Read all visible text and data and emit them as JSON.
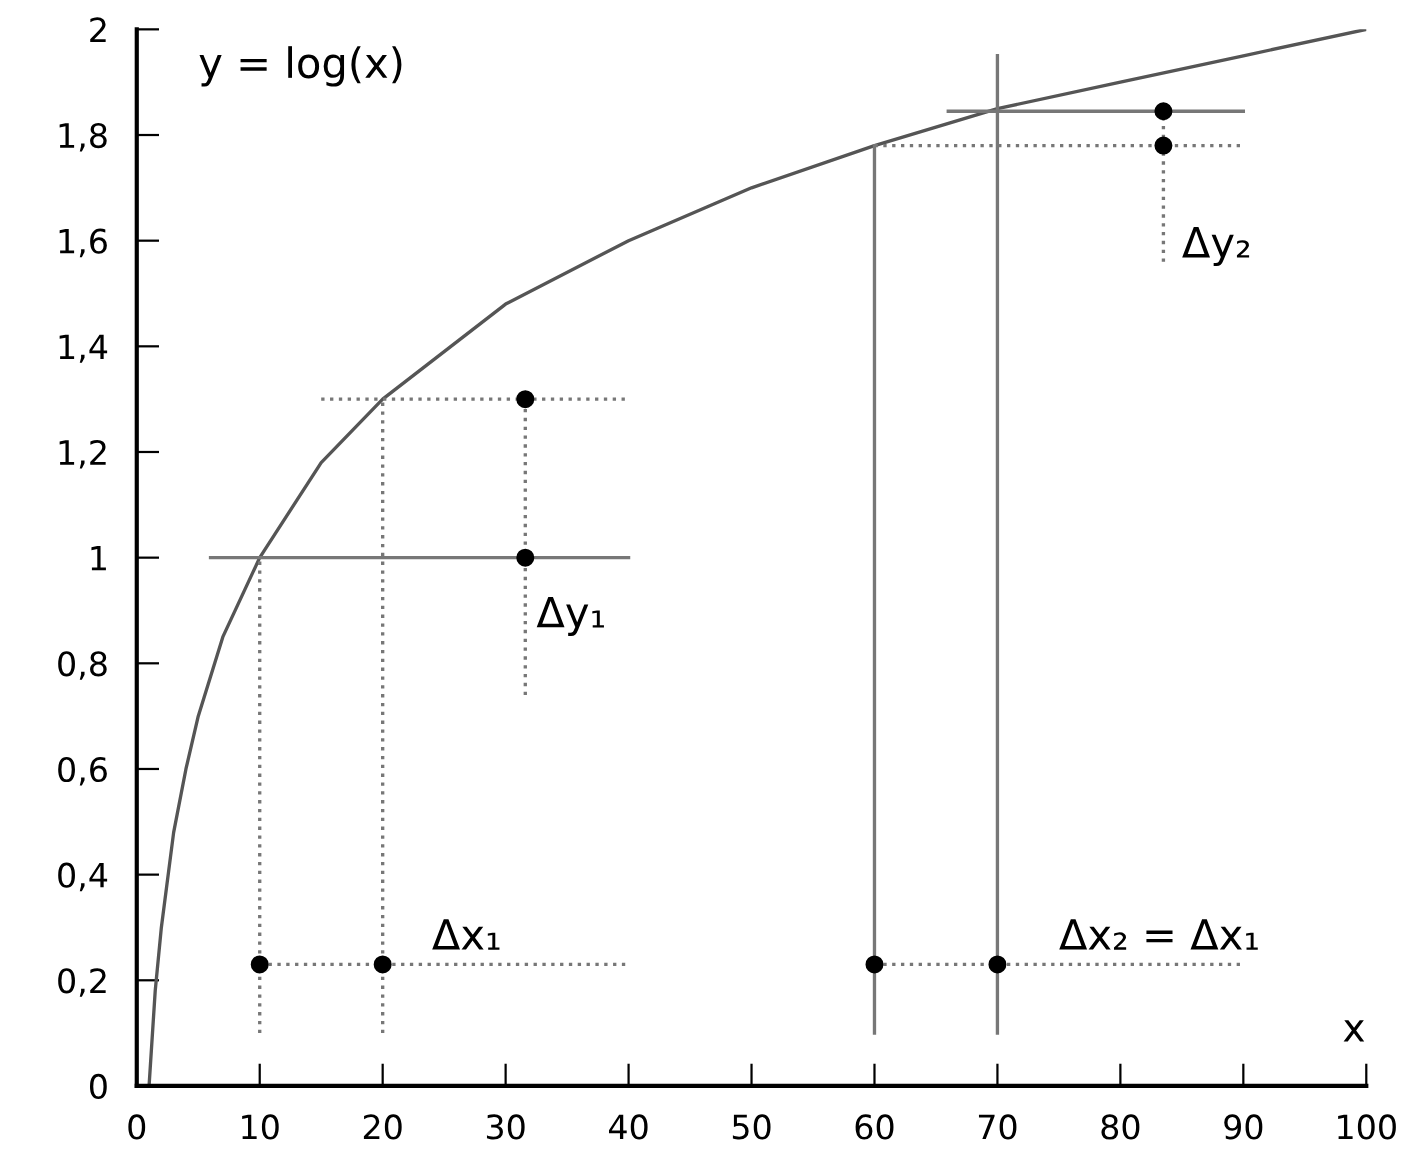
{
  "chart_data": {
    "type": "line",
    "xlabel": "x",
    "xlim": [
      0,
      100
    ],
    "ylim": [
      0,
      2
    ],
    "xticks": [
      0,
      10,
      20,
      30,
      40,
      50,
      60,
      70,
      80,
      90,
      100
    ],
    "yticks": [
      0,
      {
        "value": 0.2,
        "label": "0,2"
      },
      {
        "value": 0.4,
        "label": "0,4"
      },
      {
        "value": 0.6,
        "label": "0,6"
      },
      {
        "value": 0.8,
        "label": "0,8"
      },
      1,
      {
        "value": 1.2,
        "label": "1,2"
      },
      {
        "value": 1.4,
        "label": "1,4"
      },
      {
        "value": 1.6,
        "label": "1,6"
      },
      {
        "value": 1.8,
        "label": "1,8"
      },
      2
    ],
    "grid": false,
    "legend": false,
    "series": [
      {
        "type": "line",
        "color": "#555555",
        "line_style": "solid",
        "x": [
          1,
          1.5,
          2,
          3,
          4,
          5,
          7,
          10,
          15,
          20,
          30,
          40,
          50,
          60,
          70,
          80,
          90,
          100
        ],
        "values": [
          0,
          0.18,
          0.3,
          0.48,
          0.6,
          0.7,
          0.85,
          1,
          1.18,
          1.3,
          1.48,
          1.6,
          1.7,
          1.78,
          1.85,
          1.9,
          1.95,
          2
        ]
      },
      {
        "type": "line",
        "color": "#777777",
        "line_style": "solid",
        "x": [
          6,
          40
        ],
        "values": [
          1,
          1
        ]
      },
      {
        "type": "line",
        "color": "#777777",
        "line_style": "dotted",
        "x": [
          15,
          40
        ],
        "values": [
          1.3,
          1.3
        ]
      },
      {
        "type": "line",
        "color": "#777777",
        "line_style": "dotted",
        "x": [
          10,
          10
        ],
        "values": [
          0.1,
          1
        ]
      },
      {
        "type": "line",
        "color": "#777777",
        "line_style": "dotted",
        "x": [
          20,
          20
        ],
        "values": [
          0.1,
          1.3
        ]
      },
      {
        "type": "line",
        "color": "#777777",
        "line_style": "dotted",
        "x": [
          31.6,
          31.6
        ],
        "values": [
          0.74,
          1.3
        ]
      },
      {
        "type": "line",
        "color": "#777777",
        "line_style": "dotted",
        "x": [
          10,
          40
        ],
        "values": [
          0.23,
          0.23
        ]
      },
      {
        "type": "line",
        "color": "#777777",
        "line_style": "dotted",
        "x": [
          60,
          90
        ],
        "values": [
          0.23,
          0.23
        ]
      },
      {
        "type": "line",
        "color": "#777777",
        "line_style": "solid",
        "x": [
          60,
          60
        ],
        "values": [
          0.1,
          1.78
        ]
      },
      {
        "type": "line",
        "color": "#777777",
        "line_style": "solid",
        "x": [
          70,
          70
        ],
        "values": [
          0.1,
          1.95
        ]
      },
      {
        "type": "line",
        "color": "#777777",
        "line_style": "dotted",
        "x": [
          60,
          90
        ],
        "values": [
          1.78,
          1.78
        ]
      },
      {
        "type": "line",
        "color": "#777777",
        "line_style": "solid",
        "x": [
          66,
          90
        ],
        "values": [
          1.845,
          1.845
        ]
      },
      {
        "type": "line",
        "color": "#777777",
        "line_style": "dotted",
        "x": [
          83.5,
          83.5
        ],
        "values": [
          1.56,
          1.845
        ]
      },
      {
        "type": "scatter",
        "color": "#000000",
        "marker": "circle",
        "x": [
          10,
          20,
          31.6,
          31.6,
          60,
          70,
          83.5,
          83.5
        ],
        "values": [
          0.23,
          0.23,
          1,
          1.3,
          0.23,
          0.23,
          1.78,
          1.845
        ]
      }
    ],
    "annotations": [
      "y = log(x)",
      "Δy₁",
      "Δy₂",
      "Δx₁",
      "Δx₂ = Δx₁"
    ]
  }
}
